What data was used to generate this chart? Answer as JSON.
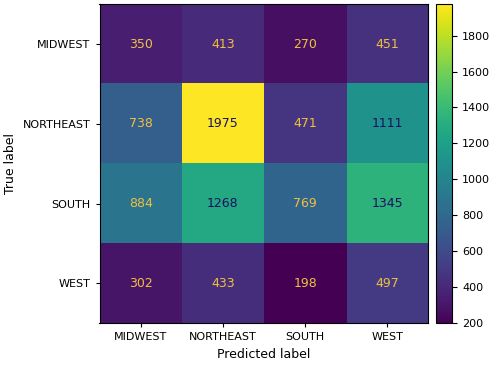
{
  "labels": [
    "MIDWEST",
    "NORTHEAST",
    "SOUTH",
    "WEST"
  ],
  "matrix": [
    [
      350,
      413,
      270,
      451
    ],
    [
      738,
      1975,
      471,
      1111
    ],
    [
      884,
      1268,
      769,
      1345
    ],
    [
      302,
      433,
      198,
      497
    ]
  ],
  "xlabel": "Predicted label",
  "ylabel": "True label",
  "cmap": "viridis",
  "colorbar_ticks": [
    200,
    400,
    600,
    800,
    1000,
    1200,
    1400,
    1600,
    1800
  ],
  "vmin": 198,
  "vmax": 1975,
  "text_color_light": "#f0c040",
  "text_color_dark": "#1a1060",
  "text_threshold_low": 700,
  "text_threshold_high": 1000,
  "figsize": [
    5.0,
    3.65
  ],
  "dpi": 100
}
